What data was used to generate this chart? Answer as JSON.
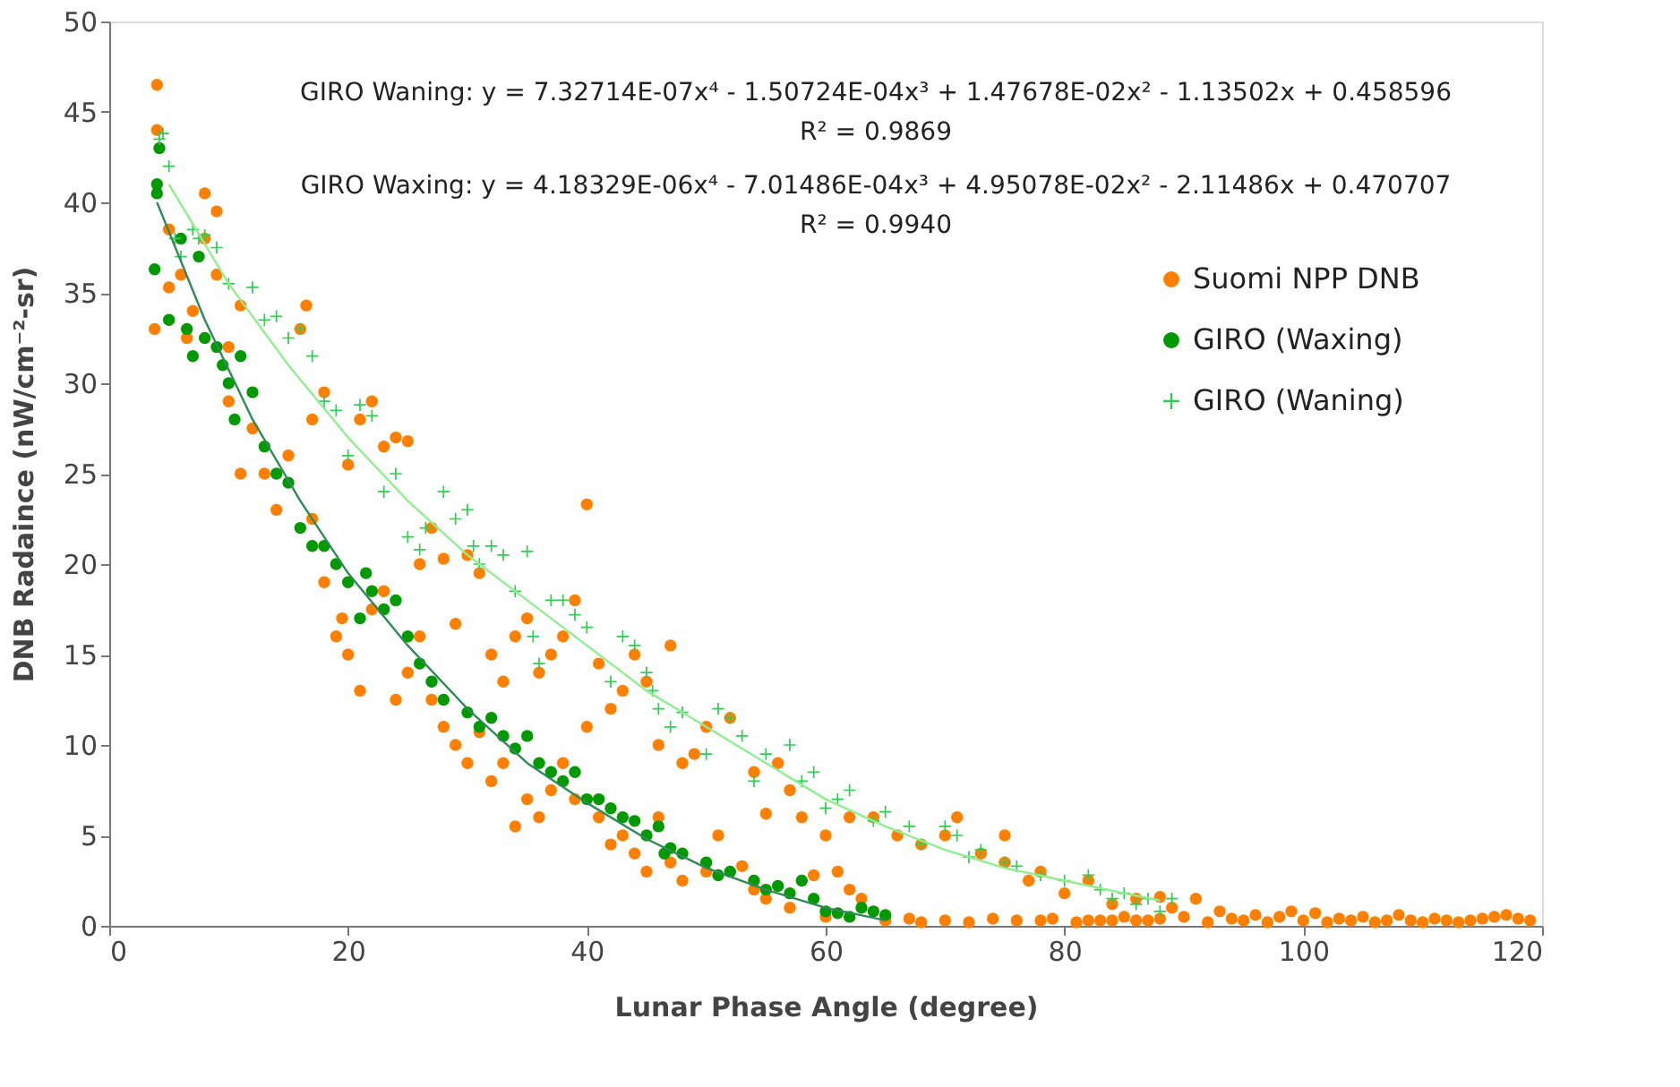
{
  "chart_data": {
    "type": "scatter",
    "xlabel": "Lunar Phase Angle (degree)",
    "ylabel": "DNB Radaince (nW/cm⁻²-sr)",
    "xlim": [
      0,
      120
    ],
    "xticks": [
      0,
      20,
      40,
      60,
      80,
      100,
      120
    ],
    "ylim": [
      0,
      50
    ],
    "yticks": [
      0,
      5,
      10,
      15,
      20,
      25,
      30,
      35,
      40,
      45,
      50
    ],
    "grid": false,
    "legend": "right",
    "annotations": [
      "GIRO Waning: y = 7.32714E-07x⁴ - 1.50724E-04x³ + 1.47678E-02x² - 1.13502x + 0.458596",
      "R² = 0.9869",
      "GIRO Waxing: y = 4.18329E-06x⁴ - 7.01486E-04x³ + 4.95078E-02x² - 2.11486x + 0.470707",
      "R² = 0.9940"
    ],
    "series": [
      {
        "name": "Suomi NPP DNB",
        "marker": "circle",
        "color": "#ff8000",
        "x": [
          4,
          4,
          3.8,
          5,
          5,
          6,
          6.5,
          7,
          8,
          8,
          9,
          9,
          10,
          10,
          11,
          11,
          12,
          13,
          14,
          15,
          16,
          16.5,
          17,
          17,
          18,
          18,
          19,
          19.5,
          20,
          20,
          21,
          21,
          22,
          22,
          23,
          23,
          24,
          24,
          25,
          25,
          26,
          26,
          27,
          27,
          28,
          28,
          29,
          29,
          30,
          30,
          31,
          31,
          32,
          32,
          33,
          33,
          34,
          34,
          35,
          35,
          36,
          36,
          37,
          37,
          38,
          38,
          39,
          39,
          40,
          40,
          41,
          41,
          42,
          42,
          43,
          43,
          44,
          44,
          45,
          45,
          46,
          46,
          47,
          47,
          48,
          48,
          49,
          50,
          50,
          51,
          52,
          53,
          54,
          54,
          55,
          55,
          56,
          57,
          57,
          58,
          59,
          60,
          60,
          61,
          62,
          62,
          63,
          64,
          65,
          66,
          67,
          68,
          68,
          70,
          70,
          71,
          72,
          73,
          74,
          75,
          75,
          76,
          77,
          78,
          78,
          79,
          80,
          81,
          82,
          82,
          83,
          84,
          84,
          85,
          86,
          86,
          87,
          88,
          88,
          89,
          90,
          91,
          92,
          93,
          94,
          95,
          96,
          97,
          98,
          99,
          100,
          101,
          102,
          103,
          104,
          105,
          106,
          107,
          108,
          109,
          110,
          111,
          112,
          113,
          114,
          115,
          116,
          117,
          118,
          119
        ],
        "values": [
          46.5,
          44,
          33,
          35.3,
          38.5,
          36,
          32.5,
          34,
          40.5,
          38,
          39.5,
          36,
          32,
          29,
          34.3,
          25,
          27.5,
          25,
          23,
          26,
          33,
          34.3,
          28,
          22.5,
          29.5,
          19,
          16,
          17,
          25.5,
          15,
          28,
          13,
          29,
          17.5,
          26.5,
          18.5,
          27,
          12.5,
          26.8,
          14,
          20,
          16,
          22,
          12.5,
          20.3,
          11,
          16.7,
          10,
          20.5,
          9,
          19.5,
          10.7,
          15,
          8,
          13.5,
          9,
          16,
          5.5,
          17,
          7,
          14,
          6,
          15,
          7.5,
          16,
          9,
          18,
          7,
          23.3,
          11,
          14.5,
          6,
          12,
          4.5,
          13,
          5,
          15,
          4,
          13.5,
          3,
          10,
          6,
          15.5,
          3.5,
          9,
          2.5,
          9.5,
          11,
          3,
          5,
          11.5,
          3.3,
          8.5,
          2,
          6.2,
          1.5,
          9,
          7.5,
          1,
          6,
          2.8,
          5,
          0.5,
          3,
          6,
          2,
          1.5,
          6,
          0.3,
          5,
          0.4,
          4.5,
          0.2,
          5,
          0.3,
          6,
          0.2,
          4,
          0.4,
          3.5,
          5,
          0.3,
          2.5,
          0.3,
          3,
          0.4,
          1.8,
          0.2,
          2.5,
          0.3,
          0.3,
          1.2,
          0.3,
          0.5,
          1.5,
          0.3,
          0.3,
          1.6,
          0.4,
          1,
          0.5,
          1.5,
          0.2,
          0.8,
          0.4,
          0.3,
          0.6,
          0.2,
          0.5,
          0.8,
          0.3,
          0.7,
          0.2,
          0.4,
          0.3,
          0.5,
          0.2,
          0.3,
          0.6,
          0.3,
          0.2,
          0.4,
          0.3,
          0.2,
          0.3,
          0.4,
          0.5,
          0.6,
          0.4,
          0.3
        ]
      },
      {
        "name": "GIRO (Waxing)",
        "marker": "circle",
        "color": "#009900",
        "x": [
          4,
          4,
          4.2,
          3.8,
          5,
          6,
          6.5,
          7,
          7.5,
          8,
          9,
          9.5,
          10,
          10.5,
          11,
          12,
          13,
          14,
          15,
          16,
          17,
          18,
          19,
          20,
          21,
          21.5,
          22,
          23,
          24,
          25,
          26,
          27,
          28,
          30,
          31,
          32,
          33,
          34,
          35,
          36,
          37,
          38,
          39,
          40,
          41,
          42,
          43,
          44,
          45,
          46,
          46.5,
          47,
          48,
          50,
          51,
          52,
          54,
          55,
          56,
          57,
          58,
          59,
          60,
          61,
          62,
          63,
          64,
          65
        ],
        "values": [
          41,
          40.5,
          43,
          36.3,
          33.5,
          38,
          33,
          31.5,
          37,
          32.5,
          32,
          31,
          30,
          28,
          31.5,
          29.5,
          26.5,
          25,
          24.5,
          22,
          21,
          21,
          20,
          19,
          17,
          19.5,
          18.5,
          17.5,
          18,
          16,
          14.5,
          13.5,
          12.5,
          11.8,
          11,
          11.5,
          10.5,
          9.8,
          10.5,
          9,
          8.5,
          8,
          8.5,
          7,
          7,
          6.5,
          6,
          5.8,
          5,
          5.5,
          4,
          4.3,
          4,
          3.5,
          2.8,
          3,
          2.5,
          2,
          2.2,
          1.8,
          2.5,
          1.5,
          0.8,
          0.7,
          0.5,
          1,
          0.8,
          0.6
        ]
      },
      {
        "name": "GIRO (Waning)",
        "marker": "cross",
        "color": "#33cc55",
        "x": [
          4.2,
          4.5,
          5,
          5.5,
          6,
          7,
          7.5,
          8,
          9,
          10,
          12,
          13,
          14,
          15,
          16,
          17,
          18,
          19,
          20,
          21,
          22,
          23,
          24,
          25,
          26,
          26.5,
          28,
          29,
          30,
          30.5,
          31,
          32,
          33,
          34,
          35,
          35.5,
          36,
          37,
          38,
          39,
          40,
          42,
          43,
          44,
          45,
          45.5,
          46,
          47,
          48,
          50,
          51,
          52,
          53,
          54,
          55,
          57,
          58,
          59,
          60,
          61,
          62,
          64,
          65,
          67,
          68,
          70,
          71,
          72,
          73,
          75,
          76,
          78,
          80,
          82,
          83,
          84,
          85,
          86,
          87,
          88,
          89
        ],
        "values": [
          43.5,
          43.8,
          42,
          38,
          37,
          38.5,
          38,
          38.2,
          37.5,
          35.5,
          35.3,
          33.5,
          33.7,
          32.5,
          33,
          31.5,
          29,
          28.5,
          26,
          28.8,
          28.2,
          24,
          25,
          21.5,
          20.8,
          22,
          24,
          22.5,
          23,
          21,
          20,
          21,
          20.5,
          18.5,
          20.7,
          16,
          14.5,
          18,
          18,
          17.2,
          16.5,
          13.5,
          16,
          15.5,
          14,
          13,
          12,
          11,
          11.8,
          9.5,
          12,
          11.5,
          10.5,
          8,
          9.5,
          10,
          8,
          8.5,
          6.5,
          7,
          7.5,
          5.8,
          6.3,
          5.5,
          4.5,
          5.5,
          5,
          3.8,
          4.2,
          3.5,
          3.3,
          2.8,
          2.5,
          2.8,
          2,
          1.5,
          1.8,
          1.2,
          1.5,
          0.8,
          1.5
        ]
      },
      {
        "type": "line",
        "color": "#2e8b57",
        "line_style": "solid",
        "x": [
          4,
          8,
          12,
          16,
          20,
          25,
          30,
          35,
          40,
          45,
          50,
          55,
          60,
          65
        ],
        "values": [
          40,
          33.5,
          28,
          23.5,
          19.5,
          15.5,
          12,
          9,
          6.8,
          4.8,
          3.2,
          2,
          1,
          0.3
        ]
      },
      {
        "type": "line",
        "color": "#90ee90",
        "line_style": "solid",
        "x": [
          5,
          10,
          15,
          20,
          25,
          30,
          35,
          40,
          45,
          50,
          55,
          60,
          65,
          70,
          75,
          80,
          85,
          88
        ],
        "values": [
          41,
          35.5,
          31,
          27,
          23.5,
          20.5,
          18,
          15.5,
          13,
          11,
          9,
          7,
          5.5,
          4.2,
          3.2,
          2.5,
          1.8,
          1.4
        ]
      }
    ]
  }
}
